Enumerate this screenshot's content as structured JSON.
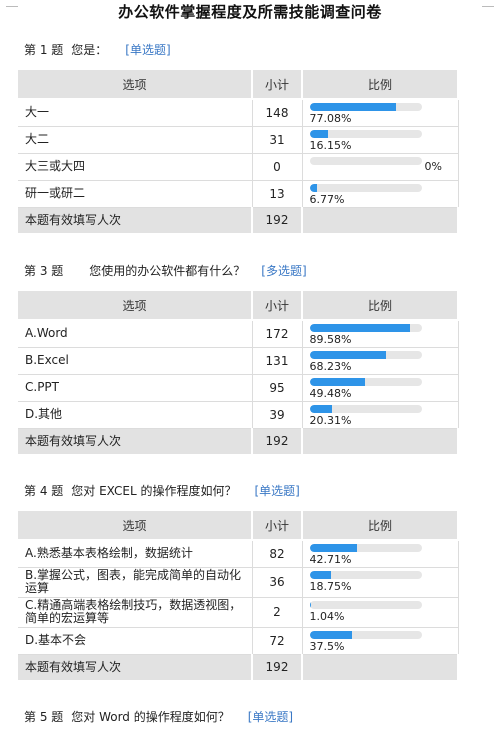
{
  "title": "办公软件掌握程度及所需技能调查问卷",
  "headers": {
    "option": "选项",
    "count": "小计",
    "ratio": "比例"
  },
  "questions": [
    {
      "number": "第 1 题",
      "text": "您是：",
      "type": "[单选题]",
      "options": [
        {
          "label": "大一",
          "count": "148",
          "percent": "77.08%",
          "fraction": 0.7708
        },
        {
          "label": "大二",
          "count": "31",
          "percent": "16.15%",
          "fraction": 0.1615
        },
        {
          "label": "大三或大四",
          "count": "0",
          "percent": "0%",
          "fraction": 0
        },
        {
          "label": "研一或研二",
          "count": "13",
          "percent": "6.77%",
          "fraction": 0.0677
        }
      ],
      "total_label": "本题有效填写人次",
      "total_count": "192"
    },
    {
      "number": "第 3 题",
      "text": "您使用的办公软件都有什么？",
      "type": "[多选题]",
      "options": [
        {
          "label": "A.Word",
          "count": "172",
          "percent": "89.58%",
          "fraction": 0.8958
        },
        {
          "label": "B.Excel",
          "count": "131",
          "percent": "68.23%",
          "fraction": 0.6823
        },
        {
          "label": "C.PPT",
          "count": "95",
          "percent": "49.48%",
          "fraction": 0.4948
        },
        {
          "label": "D.其他",
          "count": "39",
          "percent": "20.31%",
          "fraction": 0.2031
        }
      ],
      "total_label": "本题有效填写人次",
      "total_count": "192"
    },
    {
      "number": "第 4 题",
      "text": "您对 EXCEL 的操作程度如何？",
      "type": "[单选题]",
      "options": [
        {
          "label": "A.熟悉基本表格绘制，数据统计",
          "count": "82",
          "percent": "42.71%",
          "fraction": 0.4271
        },
        {
          "label": "B.掌握公式，图表，能完成简单的自动化运算",
          "count": "36",
          "percent": "18.75%",
          "fraction": 0.1875
        },
        {
          "label": "C.精通高端表格绘制技巧，数据透视图，简单的宏运算等",
          "count": "2",
          "percent": "1.04%",
          "fraction": 0.0104
        },
        {
          "label": "D.基本不会",
          "count": "72",
          "percent": "37.5%",
          "fraction": 0.375
        }
      ],
      "total_label": "本题有效填写人次",
      "total_count": "192"
    },
    {
      "number": "第 5 题",
      "text": "您对 Word 的操作程度如何？",
      "type": "[单选题]"
    }
  ]
}
